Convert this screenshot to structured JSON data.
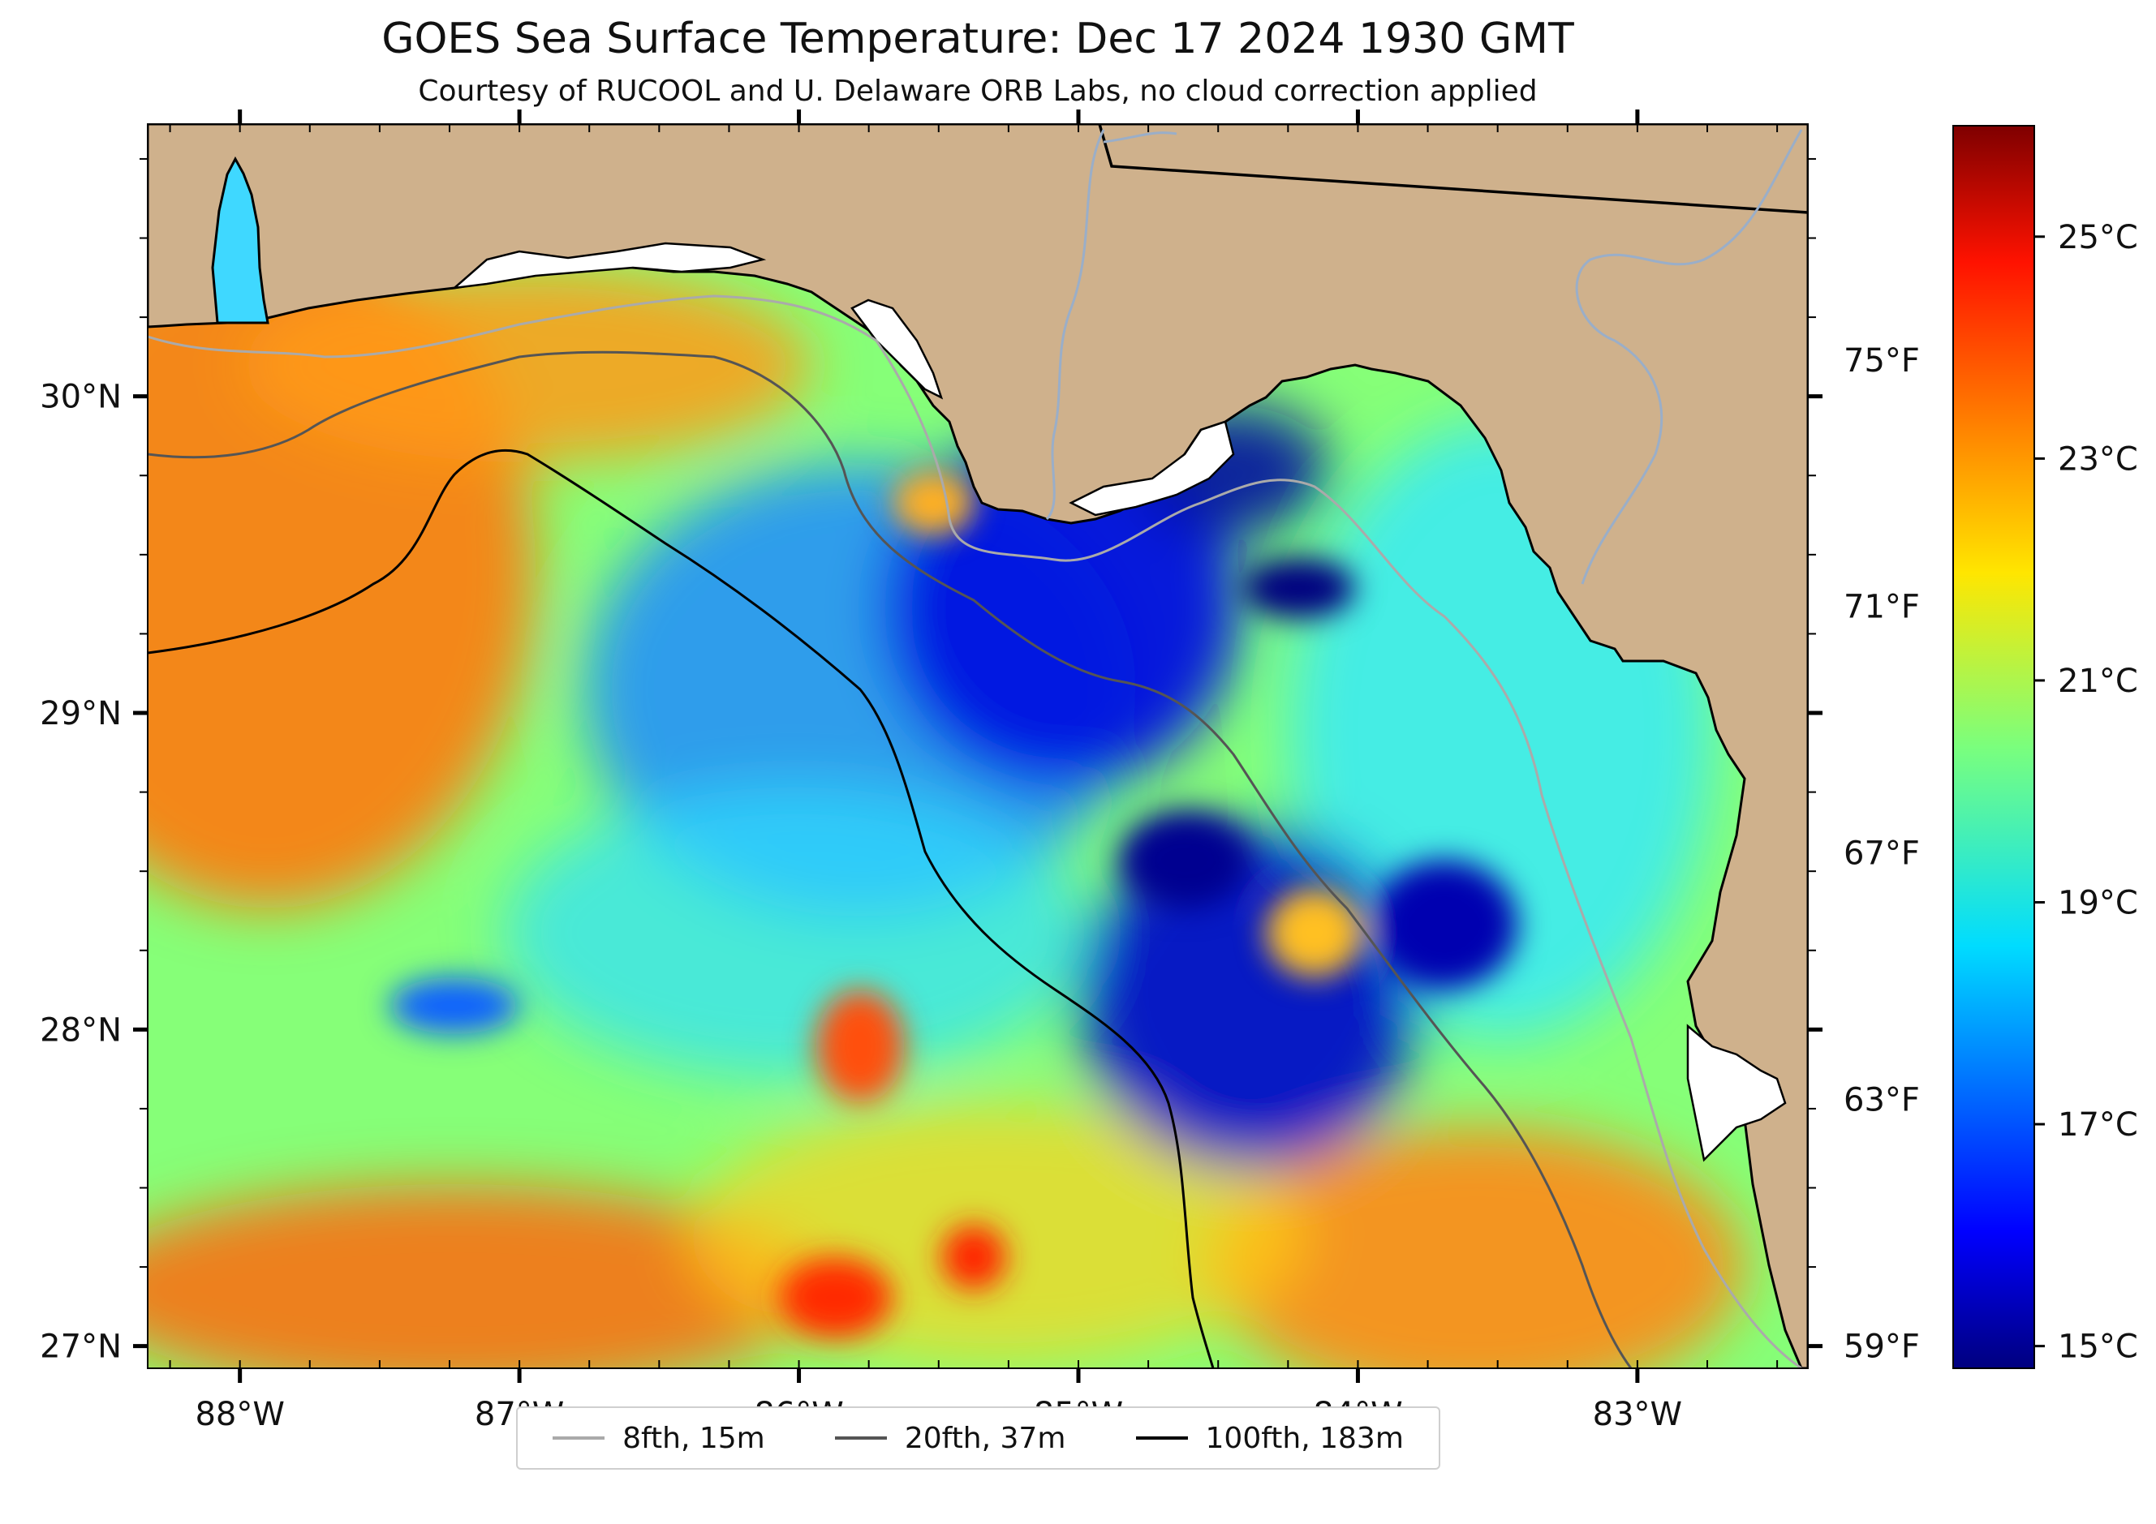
{
  "title": "GOES Sea Surface Temperature: Dec 17 2024 1930 GMT",
  "subtitle": "Courtesy of RUCOOL and U. Delaware ORB Labs, no cloud correction applied",
  "map": {
    "lon_range": [
      -88.33,
      -82.39
    ],
    "lat_range": [
      26.93,
      30.86
    ],
    "lon_ticks": [
      {
        "value": -88,
        "label": "88°W"
      },
      {
        "value": -87,
        "label": "87°W"
      },
      {
        "value": -86,
        "label": "86°W"
      },
      {
        "value": -85,
        "label": "85°W"
      },
      {
        "value": -84,
        "label": "84°W"
      },
      {
        "value": -83,
        "label": "83°W"
      }
    ],
    "lat_ticks": [
      {
        "value": 27,
        "label": "27°N"
      },
      {
        "value": 28,
        "label": "28°N"
      },
      {
        "value": 29,
        "label": "29°N"
      },
      {
        "value": 30,
        "label": "30°N"
      }
    ],
    "fahrenheit_ticks": [
      {
        "value": 59,
        "label": "59°F"
      },
      {
        "value": 63,
        "label": "63°F"
      },
      {
        "value": 67,
        "label": "67°F"
      },
      {
        "value": 71,
        "label": "71°F"
      },
      {
        "value": 75,
        "label": "75°F"
      }
    ],
    "colors": {
      "land": "#cfb18c",
      "coast": "#000000",
      "rivers": "#9aaec8",
      "border": "#000000"
    }
  },
  "colorbar": {
    "vmin": 14.8,
    "vmax": 26.0,
    "colormap": "jet",
    "ticks": [
      {
        "value": 15,
        "label": "15°C"
      },
      {
        "value": 17,
        "label": "17°C"
      },
      {
        "value": 19,
        "label": "19°C"
      },
      {
        "value": 21,
        "label": "21°C"
      },
      {
        "value": 23,
        "label": "23°C"
      },
      {
        "value": 25,
        "label": "25°C"
      }
    ]
  },
  "legend": {
    "items": [
      {
        "label": "8fth, 15m",
        "color": "#aaaaaa"
      },
      {
        "label": "20fth, 37m",
        "color": "#555555"
      },
      {
        "label": "100fth, 183m",
        "color": "#000000"
      }
    ]
  }
}
